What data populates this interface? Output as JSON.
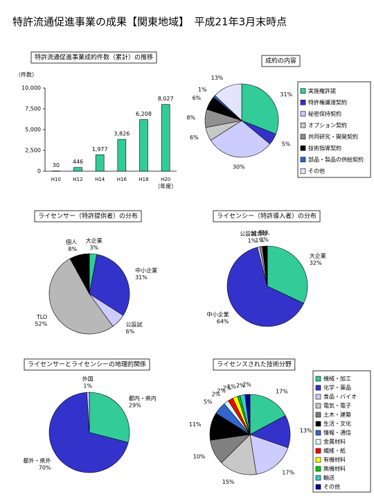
{
  "header": {
    "title": "特許流通促進事業の成果【関東地域】　平成21年3月末時点"
  },
  "chart_data": [
    {
      "type": "bar",
      "title": "特許流通促進事業成約件数（累計）の推移",
      "y_label": "（件数）",
      "x_label": "（年度）",
      "categories": [
        "H10",
        "H12",
        "H14",
        "H16",
        "H18",
        "H20"
      ],
      "values": [
        30,
        446,
        1977,
        3826,
        6208,
        8027
      ],
      "value_labels": [
        "30",
        "446",
        "1,977",
        "3,826",
        "6,208",
        "8,027"
      ],
      "color": "#33cc99",
      "ylim": [
        0,
        10000
      ],
      "yticks": [
        0,
        {
          "value": 2500,
          "label": "2,500"
        },
        {
          "value": 5000,
          "label": "5,000"
        },
        {
          "value": 7500,
          "label": "7,500"
        },
        {
          "value": 10000,
          "label": "10,000"
        }
      ]
    },
    {
      "type": "pie",
      "title": "成約の内容",
      "legend": true,
      "categories": [
        "実施権許諾",
        "特許権譲渡契約",
        "秘密保持契約",
        "オプション契約",
        "共同研究・開発契約",
        "技術指導契約",
        "部品・製品の供給契約",
        "その他"
      ],
      "values": [
        31,
        5,
        30,
        6,
        8,
        6,
        1,
        13
      ],
      "value_labels": [
        "31%",
        "5%",
        "30%",
        "6%",
        "8%",
        "6%",
        "1%",
        "13%"
      ],
      "colors": [
        "#33cc99",
        "#3333cc",
        "#ccccff",
        "#c8c8c8",
        "#909090",
        "#000000",
        "#3366cc",
        "#e4e4ff"
      ]
    },
    {
      "type": "pie",
      "title": "ライセンサー（特許提供者）の分布",
      "legend": false,
      "categories": [
        "大企業",
        "中小企業",
        "公設試",
        "TLO",
        "個人"
      ],
      "values": [
        3,
        31,
        6,
        52,
        8
      ],
      "value_labels": [
        "3%",
        "31%",
        "6%",
        "52%",
        "8%"
      ],
      "colors": [
        "#33cc99",
        "#3333cc",
        "#ccccff",
        "#b8b8b8",
        "#000000"
      ]
    },
    {
      "type": "pie",
      "title": "ライセンシー（特許導入者）の分布",
      "legend": false,
      "categories": [
        "大企業",
        "中小企業",
        "公設試",
        "組合等",
        "個人"
      ],
      "values": [
        32,
        64,
        1,
        1,
        2
      ],
      "value_labels": [
        "32%",
        "64%",
        "1%",
        "1%",
        "2%"
      ],
      "colors": [
        "#33cc99",
        "#3333cc",
        "#ccccff",
        "#909090",
        "#000000"
      ]
    },
    {
      "type": "pie",
      "title": "ライセンサーとライセンシーの地理的関係",
      "legend": false,
      "categories": [
        "都内・県内",
        "都外・県外",
        "外国"
      ],
      "values": [
        29,
        70,
        1
      ],
      "value_labels": [
        "29%",
        "70%",
        "1%"
      ],
      "colors": [
        "#33cc99",
        "#3333cc",
        "#ccccff"
      ]
    },
    {
      "type": "pie",
      "title": "ライセンスされた技術分野",
      "legend": true,
      "categories": [
        "機械・加工",
        "化学・薬品",
        "食品・バイオ",
        "電気・電子",
        "土木・建築",
        "生活・文化",
        "情報・通信",
        "金属材料",
        "繊維・紙",
        "有機材料",
        "無機材料",
        "輸送",
        "その他"
      ],
      "values": [
        17,
        13,
        17,
        15,
        10,
        11,
        5,
        2,
        2,
        2,
        1,
        2,
        2
      ],
      "value_labels": [
        "17%",
        "13%",
        "17%",
        "15%",
        "10%",
        "11%",
        "5%",
        "2%",
        "2%",
        "2%",
        "1%",
        "2%",
        "2%"
      ],
      "colors": [
        "#33cc99",
        "#3333cc",
        "#ccccff",
        "#c8c8c8",
        "#808080",
        "#000000",
        "#3366cc",
        "#ccffff",
        "#ff0000",
        "#ffff00",
        "#00cc00",
        "#33cccc",
        "#000099"
      ]
    }
  ]
}
